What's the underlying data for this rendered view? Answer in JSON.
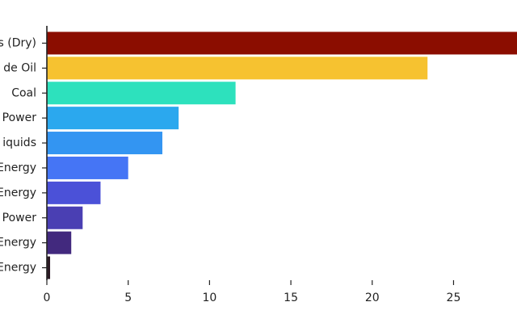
{
  "chart_data": {
    "type": "bar",
    "orientation": "horizontal",
    "categories": [
      "s (Dry)",
      "de Oil",
      "Coal",
      "Power",
      "iquids",
      "Energy",
      "Energy",
      "Power",
      "Energy",
      "Energy"
    ],
    "values": [
      28.9,
      23.4,
      11.6,
      8.1,
      7.1,
      5.0,
      3.3,
      2.2,
      1.5,
      0.2
    ],
    "colors": [
      "#8b0d00",
      "#f6c230",
      "#2de1bd",
      "#2ba8ee",
      "#3395f2",
      "#4575f5",
      "#4b51d8",
      "#4a3fb3",
      "#42297e",
      "#2b1a24"
    ],
    "xlim": [
      0,
      28.9
    ],
    "xticks": [
      0,
      5,
      10,
      15,
      20,
      25
    ],
    "title": "",
    "xlabel": "",
    "ylabel": "",
    "grid": false,
    "legend": "none"
  }
}
